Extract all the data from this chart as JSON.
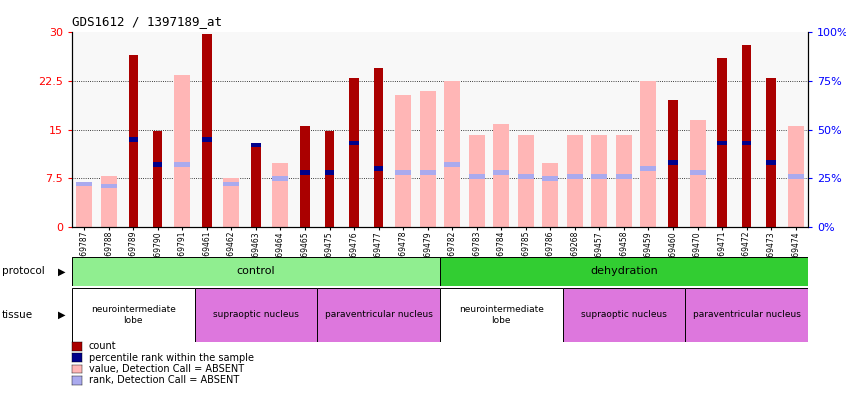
{
  "title": "GDS1612 / 1397189_at",
  "samples": [
    "GSM69787",
    "GSM69788",
    "GSM69789",
    "GSM69790",
    "GSM69791",
    "GSM69461",
    "GSM69462",
    "GSM69463",
    "GSM69464",
    "GSM69465",
    "GSM69475",
    "GSM69476",
    "GSM69477",
    "GSM69478",
    "GSM69479",
    "GSM69782",
    "GSM69783",
    "GSM69784",
    "GSM69785",
    "GSM69786",
    "GSM69268",
    "GSM69457",
    "GSM69458",
    "GSM69459",
    "GSM69460",
    "GSM69470",
    "GSM69471",
    "GSM69472",
    "GSM69473",
    "GSM69474"
  ],
  "count_values": [
    null,
    null,
    26.5,
    14.8,
    null,
    29.8,
    null,
    12.5,
    null,
    15.6,
    14.8,
    23.0,
    24.5,
    null,
    null,
    null,
    null,
    null,
    null,
    null,
    null,
    null,
    null,
    null,
    19.5,
    null,
    26.0,
    28.0,
    23.0,
    null
  ],
  "absent_pct_values": [
    22.0,
    26.0,
    null,
    null,
    78.0,
    null,
    25.0,
    null,
    33.0,
    null,
    null,
    null,
    null,
    68.0,
    70.0,
    75.0,
    47.0,
    53.0,
    47.0,
    33.0,
    47.0,
    47.0,
    47.0,
    75.0,
    null,
    55.0,
    null,
    null,
    null,
    52.0
  ],
  "percentile_present_pct": [
    null,
    null,
    45.0,
    32.0,
    null,
    45.0,
    null,
    42.0,
    null,
    28.0,
    28.0,
    43.0,
    30.0,
    null,
    null,
    null,
    null,
    null,
    null,
    null,
    null,
    null,
    null,
    null,
    33.0,
    null,
    43.0,
    43.0,
    33.0,
    null
  ],
  "percentile_absent_pct": [
    22.0,
    21.0,
    null,
    null,
    32.0,
    null,
    22.0,
    null,
    25.0,
    null,
    null,
    null,
    null,
    28.0,
    28.0,
    32.0,
    26.0,
    28.0,
    26.0,
    25.0,
    26.0,
    26.0,
    26.0,
    30.0,
    null,
    28.0,
    null,
    null,
    null,
    26.0
  ],
  "protocol_groups": [
    {
      "label": "control",
      "start": 0,
      "end": 14,
      "color": "#90ee90"
    },
    {
      "label": "dehydration",
      "start": 15,
      "end": 29,
      "color": "#32cd32"
    }
  ],
  "tissue_groups": [
    {
      "label": "neurointermediate\nlobe",
      "start": 0,
      "end": 4,
      "color": "#ffffff"
    },
    {
      "label": "supraoptic nucleus",
      "start": 5,
      "end": 9,
      "color": "#dd77dd"
    },
    {
      "label": "paraventricular nucleus",
      "start": 10,
      "end": 14,
      "color": "#dd77dd"
    },
    {
      "label": "neurointermediate\nlobe",
      "start": 15,
      "end": 19,
      "color": "#ffffff"
    },
    {
      "label": "supraoptic nucleus",
      "start": 20,
      "end": 24,
      "color": "#dd77dd"
    },
    {
      "label": "paraventricular nucleus",
      "start": 25,
      "end": 29,
      "color": "#dd77dd"
    }
  ],
  "ylim_left": [
    0,
    30
  ],
  "ylim_right": [
    0,
    100
  ],
  "yticks_left": [
    0,
    7.5,
    15,
    22.5,
    30
  ],
  "yticks_right": [
    0,
    25,
    50,
    75,
    100
  ],
  "bar_color_present": "#aa0000",
  "bar_color_absent": "#ffb6b6",
  "dot_color_present": "#00008b",
  "dot_color_absent": "#aaaaee",
  "legend_items": [
    {
      "label": "count",
      "color": "#aa0000"
    },
    {
      "label": "percentile rank within the sample",
      "color": "#00008b"
    },
    {
      "label": "value, Detection Call = ABSENT",
      "color": "#ffb6b6"
    },
    {
      "label": "rank, Detection Call = ABSENT",
      "color": "#aaaaee"
    }
  ]
}
